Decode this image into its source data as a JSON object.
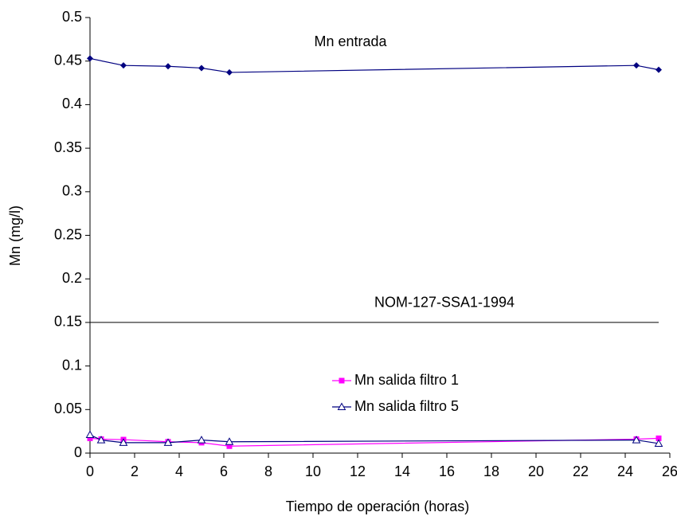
{
  "chart_data": {
    "type": "line",
    "x_label": "Tiempo de operación (horas)",
    "y_label": "Mn (mg/l)",
    "xlim": [
      0,
      26
    ],
    "xticks": [
      0,
      2,
      4,
      6,
      8,
      10,
      12,
      14,
      16,
      18,
      20,
      22,
      24,
      26
    ],
    "ylim": [
      0,
      0.5
    ],
    "yticks": [
      0,
      0.05,
      0.1,
      0.15,
      0.2,
      0.25,
      0.3,
      0.35,
      0.4,
      0.45,
      0.5
    ],
    "grid": false,
    "hlines": [
      {
        "value": 0.15,
        "label": "NOM-127-SSA1-1994",
        "color": "#000000"
      }
    ],
    "series": [
      {
        "name": "Mn entrada",
        "color": "#000080",
        "marker": "diamond",
        "legend": false,
        "x": [
          0,
          1.5,
          3.5,
          5,
          6.25,
          24.5,
          25.5
        ],
        "values": [
          0.453,
          0.445,
          0.444,
          0.442,
          0.437,
          0.445,
          0.44
        ]
      },
      {
        "name": "Mn salida filtro 1",
        "color": "#ff00ff",
        "marker": "square",
        "legend": true,
        "x": [
          0,
          0.5,
          1.5,
          3.5,
          5,
          6.25,
          24.5,
          25.5
        ],
        "values": [
          0.017,
          0.016,
          0.0155,
          0.013,
          0.012,
          0.008,
          0.016,
          0.017
        ]
      },
      {
        "name": "Mn salida filtro 5",
        "color": "#000080",
        "marker": "triangle",
        "legend": true,
        "x": [
          0,
          0.5,
          1.5,
          3.5,
          5,
          6.25,
          24.5,
          25.5
        ],
        "values": [
          0.021,
          0.015,
          0.012,
          0.012,
          0.015,
          0.013,
          0.015,
          0.011
        ]
      }
    ]
  }
}
